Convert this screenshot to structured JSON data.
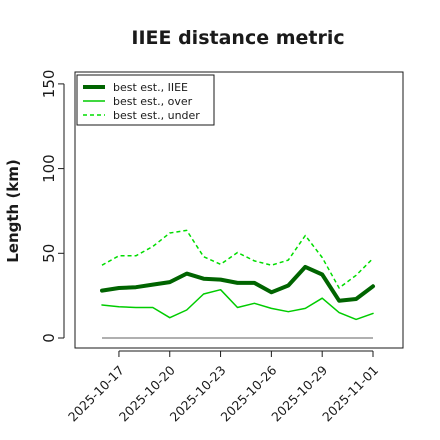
{
  "chart_data": {
    "type": "line",
    "title": "IIEE distance metric",
    "xlabel": "",
    "ylabel": "Length (km)",
    "ylim": [
      0,
      160
    ],
    "yticks": [
      0,
      50,
      100,
      150
    ],
    "x": [
      "2025-10-16",
      "2025-10-17",
      "2025-10-18",
      "2025-10-19",
      "2025-10-20",
      "2025-10-21",
      "2025-10-22",
      "2025-10-23",
      "2025-10-24",
      "2025-10-25",
      "2025-10-26",
      "2025-10-27",
      "2025-10-28",
      "2025-10-29",
      "2025-10-30",
      "2025-10-31",
      "2025-11-01"
    ],
    "xticks": [
      "2025-10-17",
      "2025-10-20",
      "2025-10-23",
      "2025-10-26",
      "2025-10-29",
      "2025-11-01"
    ],
    "baseline": 0,
    "legend_position": "upper left",
    "grid": false,
    "series": [
      {
        "name": "best est., IIEE",
        "color": "#006400",
        "style": "solid",
        "width": "thick",
        "values": [
          28,
          29.5,
          30,
          31.5,
          33,
          38,
          35,
          34.5,
          32.5,
          32.5,
          27,
          31,
          42,
          37.5,
          22,
          23,
          30.5
        ]
      },
      {
        "name": "best est., over",
        "color": "#00cc00",
        "style": "solid",
        "width": "thin",
        "values": [
          19.5,
          18.5,
          18,
          18,
          12,
          16.5,
          26,
          28.5,
          18,
          20.5,
          17.5,
          15.5,
          17.5,
          23.5,
          15,
          11,
          14.5
        ]
      },
      {
        "name": "best est., under",
        "color": "#00dd00",
        "style": "dashed",
        "width": "thin",
        "values": [
          43,
          48.5,
          48.5,
          54,
          62,
          63.5,
          48,
          43.5,
          50.5,
          45.5,
          43,
          46,
          60.5,
          47.5,
          29.5,
          37,
          47
        ]
      }
    ]
  }
}
